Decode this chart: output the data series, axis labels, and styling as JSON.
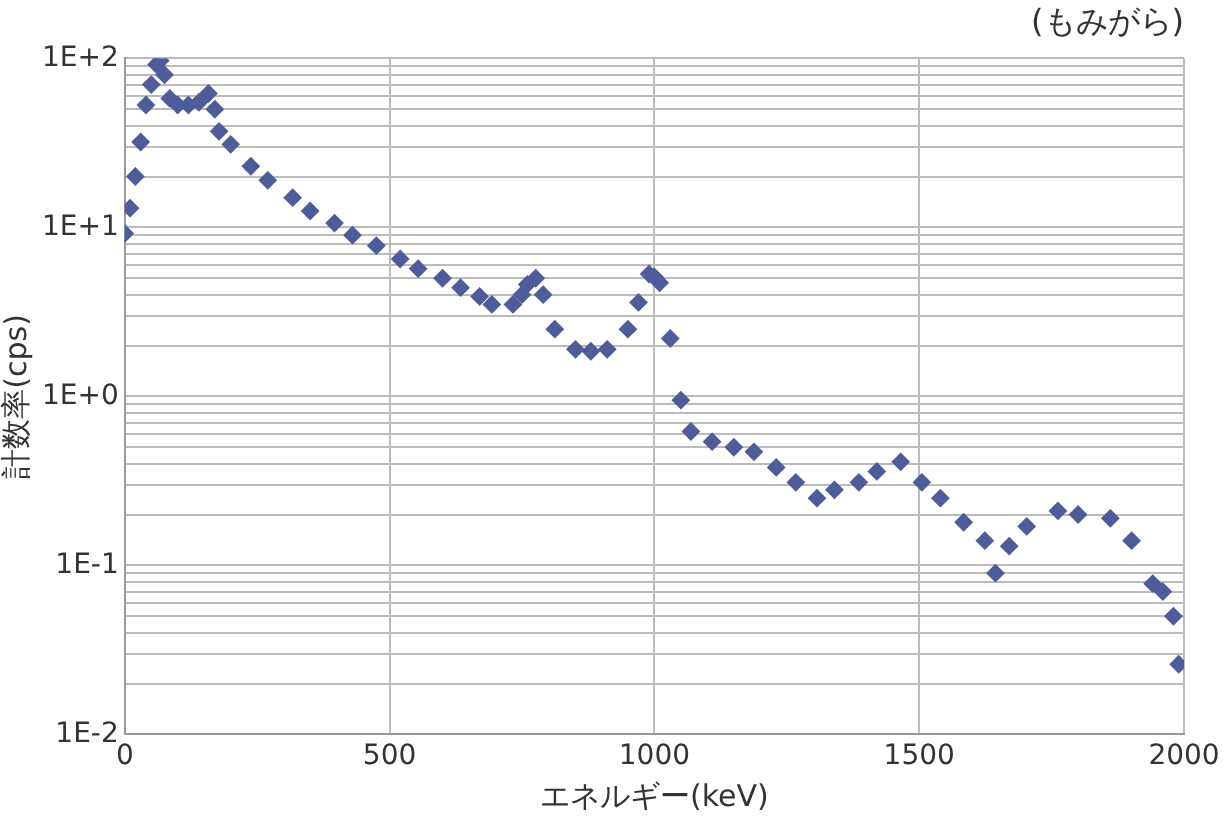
{
  "chart_data": {
    "type": "scatter",
    "title": "(もみがら)",
    "xlabel": "エネルギー(keV)",
    "ylabel": "計数率(cps)",
    "log": "y",
    "grid": true,
    "marker": "diamond",
    "legend": false,
    "xlim": [
      0,
      2000
    ],
    "xticks": [
      0,
      500,
      1000,
      1500,
      2000
    ],
    "ylim": [
      0.01,
      100
    ],
    "yticks": [
      {
        "value": 0.01,
        "label": "1E-2"
      },
      {
        "value": 0.02,
        "label": null
      },
      {
        "value": 0.03,
        "label": null
      },
      {
        "value": 0.04,
        "label": null
      },
      {
        "value": 0.05,
        "label": null
      },
      {
        "value": 0.06,
        "label": null
      },
      {
        "value": 0.07,
        "label": null
      },
      {
        "value": 0.08,
        "label": null
      },
      {
        "value": 0.09,
        "label": null
      },
      {
        "value": 0.1,
        "label": "1E-1"
      },
      {
        "value": 0.2,
        "label": null
      },
      {
        "value": 0.3,
        "label": null
      },
      {
        "value": 0.4,
        "label": null
      },
      {
        "value": 0.5,
        "label": null
      },
      {
        "value": 0.6,
        "label": null
      },
      {
        "value": 0.7,
        "label": null
      },
      {
        "value": 0.8,
        "label": null
      },
      {
        "value": 0.9,
        "label": null
      },
      {
        "value": 1,
        "label": "1E+0"
      },
      {
        "value": 2,
        "label": null
      },
      {
        "value": 3,
        "label": null
      },
      {
        "value": 4,
        "label": null
      },
      {
        "value": 5,
        "label": null
      },
      {
        "value": 6,
        "label": null
      },
      {
        "value": 7,
        "label": null
      },
      {
        "value": 8,
        "label": null
      },
      {
        "value": 9,
        "label": null
      },
      {
        "value": 10,
        "label": "1E+1"
      },
      {
        "value": 20,
        "label": null
      },
      {
        "value": 30,
        "label": null
      },
      {
        "value": 40,
        "label": null
      },
      {
        "value": 50,
        "label": null
      },
      {
        "value": 60,
        "label": null
      },
      {
        "value": 70,
        "label": null
      },
      {
        "value": 80,
        "label": null
      },
      {
        "value": 90,
        "label": null
      },
      {
        "value": 100,
        "label": "1E+2"
      }
    ],
    "series": [
      {
        "color": "#4e5c9a",
        "x": [
          0,
          10,
          20,
          30,
          40,
          50,
          60,
          67,
          75,
          85,
          100,
          120,
          140,
          158,
          170,
          178,
          200,
          238,
          270,
          317,
          350,
          396,
          430,
          475,
          520,
          554,
          600,
          634,
          670,
          693,
          733,
          750,
          760,
          776,
          790,
          812,
          851,
          880,
          911,
          950,
          970,
          990,
          1000,
          1010,
          1030,
          1050,
          1069,
          1109,
          1150,
          1188,
          1230,
          1267,
          1307,
          1340,
          1386,
          1420,
          1465,
          1505,
          1540,
          1584,
          1624,
          1644,
          1670,
          1703,
          1762,
          1800,
          1861,
          1901,
          1941,
          1960,
          1980,
          1990
        ],
        "values": [
          9.2,
          13,
          20,
          32,
          53,
          70,
          92,
          97,
          80,
          58,
          53,
          53,
          55,
          62,
          50,
          37,
          31,
          23,
          19,
          15,
          12.5,
          10.6,
          9,
          7.8,
          6.5,
          5.7,
          5,
          4.4,
          3.9,
          3.5,
          3.5,
          4,
          4.6,
          5,
          4,
          2.5,
          1.9,
          1.85,
          1.9,
          2.5,
          3.6,
          5.3,
          5.1,
          4.7,
          2.2,
          0.95,
          0.62,
          0.54,
          0.5,
          0.47,
          0.38,
          0.31,
          0.25,
          0.28,
          0.31,
          0.36,
          0.41,
          0.31,
          0.25,
          0.18,
          0.14,
          0.09,
          0.13,
          0.17,
          0.21,
          0.2,
          0.19,
          0.14,
          0.078,
          0.07,
          0.05,
          0.026
        ]
      }
    ]
  }
}
